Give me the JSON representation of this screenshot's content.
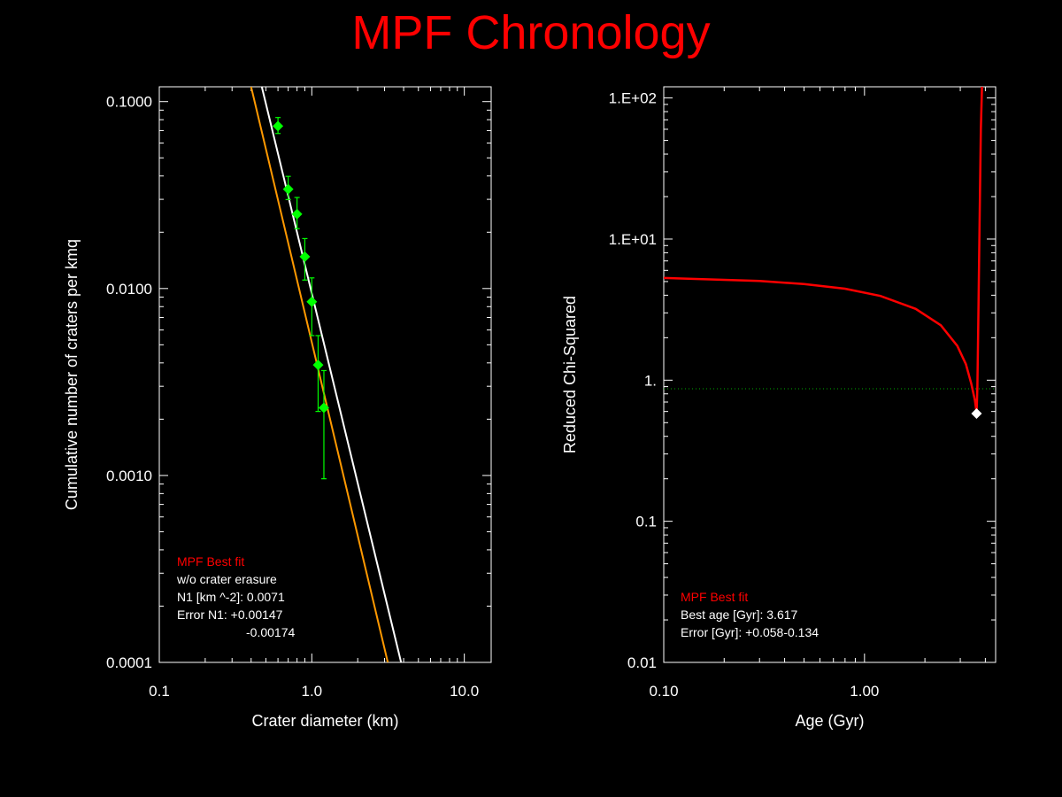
{
  "page_title": "MPF Chronology",
  "colors": {
    "background": "#000000",
    "title": "#ff0000",
    "axis": "#ffffff",
    "data_points": "#00ff00",
    "fit_line": "#ffffff",
    "fit_line_no_erasure": "#ff9900",
    "chi_curve": "#ff0000",
    "threshold_line": "#00aa00",
    "best_marker": "#ffffff"
  },
  "chart_data": [
    {
      "type": "scatter",
      "xlabel": "Crater diameter (km)",
      "ylabel": "Cumulative number of craters per kmq",
      "xscale": "log",
      "yscale": "log",
      "xlim": [
        0.1,
        15
      ],
      "ylim": [
        0.0001,
        0.12
      ],
      "x_tick_labels": [
        "0.1",
        "1.0",
        "10.0"
      ],
      "x_tick_values": [
        0.1,
        1,
        10
      ],
      "y_tick_labels": [
        "0.0001",
        "0.0010",
        "0.0100",
        "0.1000"
      ],
      "y_tick_values": [
        0.0001,
        0.001,
        0.01,
        0.1
      ],
      "series": [
        {
          "type": "scatter",
          "x": [
            0.6,
            0.7,
            0.8,
            0.9,
            1.0,
            1.1,
            1.2
          ],
          "y": [
            0.074,
            0.034,
            0.025,
            0.0148,
            0.0085,
            0.0039,
            0.0023
          ],
          "yerr_low": [
            0.0065,
            0.0041,
            0.0041,
            0.0037,
            0.0029,
            0.0017,
            0.00134
          ],
          "yerr_high": [
            0.0082,
            0.0058,
            0.0057,
            0.0037,
            0.0029,
            0.0017,
            0.00134
          ]
        },
        {
          "type": "line",
          "x": [
            0.47,
            3.85
          ],
          "y": [
            0.12,
            0.0001
          ]
        },
        {
          "type": "line",
          "x": [
            0.4,
            3.15
          ],
          "y": [
            0.12,
            0.0001
          ]
        }
      ],
      "annotation": {
        "heading": "MPF Best fit",
        "lines": [
          "w/o crater erasure",
          "N1 [km ^-2]: 0.0071",
          "Error N1: +0.00147",
          "-0.00174"
        ]
      }
    },
    {
      "type": "line",
      "xlabel": "Age (Gyr)",
      "ylabel": "Reduced Chi-Squared",
      "xscale": "log",
      "yscale": "log",
      "xlim": [
        0.1,
        4.5
      ],
      "ylim": [
        0.01,
        120
      ],
      "x_tick_labels": [
        "0.10",
        "1.00"
      ],
      "x_tick_values": [
        0.1,
        1
      ],
      "y_tick_labels": [
        "0.01",
        "0.1",
        "1.",
        "1.E+01",
        "1.E+02"
      ],
      "y_tick_values": [
        0.01,
        0.1,
        1,
        10,
        100
      ],
      "series": [
        {
          "type": "line",
          "x": [
            0.1,
            0.3,
            0.5,
            0.8,
            1.2,
            1.8,
            2.4,
            2.9,
            3.2,
            3.4,
            3.55,
            3.6,
            3.617,
            3.65,
            3.7,
            3.75,
            3.8,
            3.85
          ],
          "y": [
            5.3,
            5.05,
            4.8,
            4.45,
            3.95,
            3.2,
            2.45,
            1.75,
            1.3,
            0.95,
            0.72,
            0.62,
            0.58,
            0.9,
            3.5,
            15,
            60,
            120
          ]
        }
      ],
      "threshold_y": 0.87,
      "best_point": {
        "x": 3.617,
        "y": 0.58
      },
      "annotation": {
        "heading": "MPF Best fit",
        "lines": [
          "Best age [Gyr]: 3.617",
          "Error [Gyr]: +0.058-0.134"
        ]
      }
    }
  ]
}
